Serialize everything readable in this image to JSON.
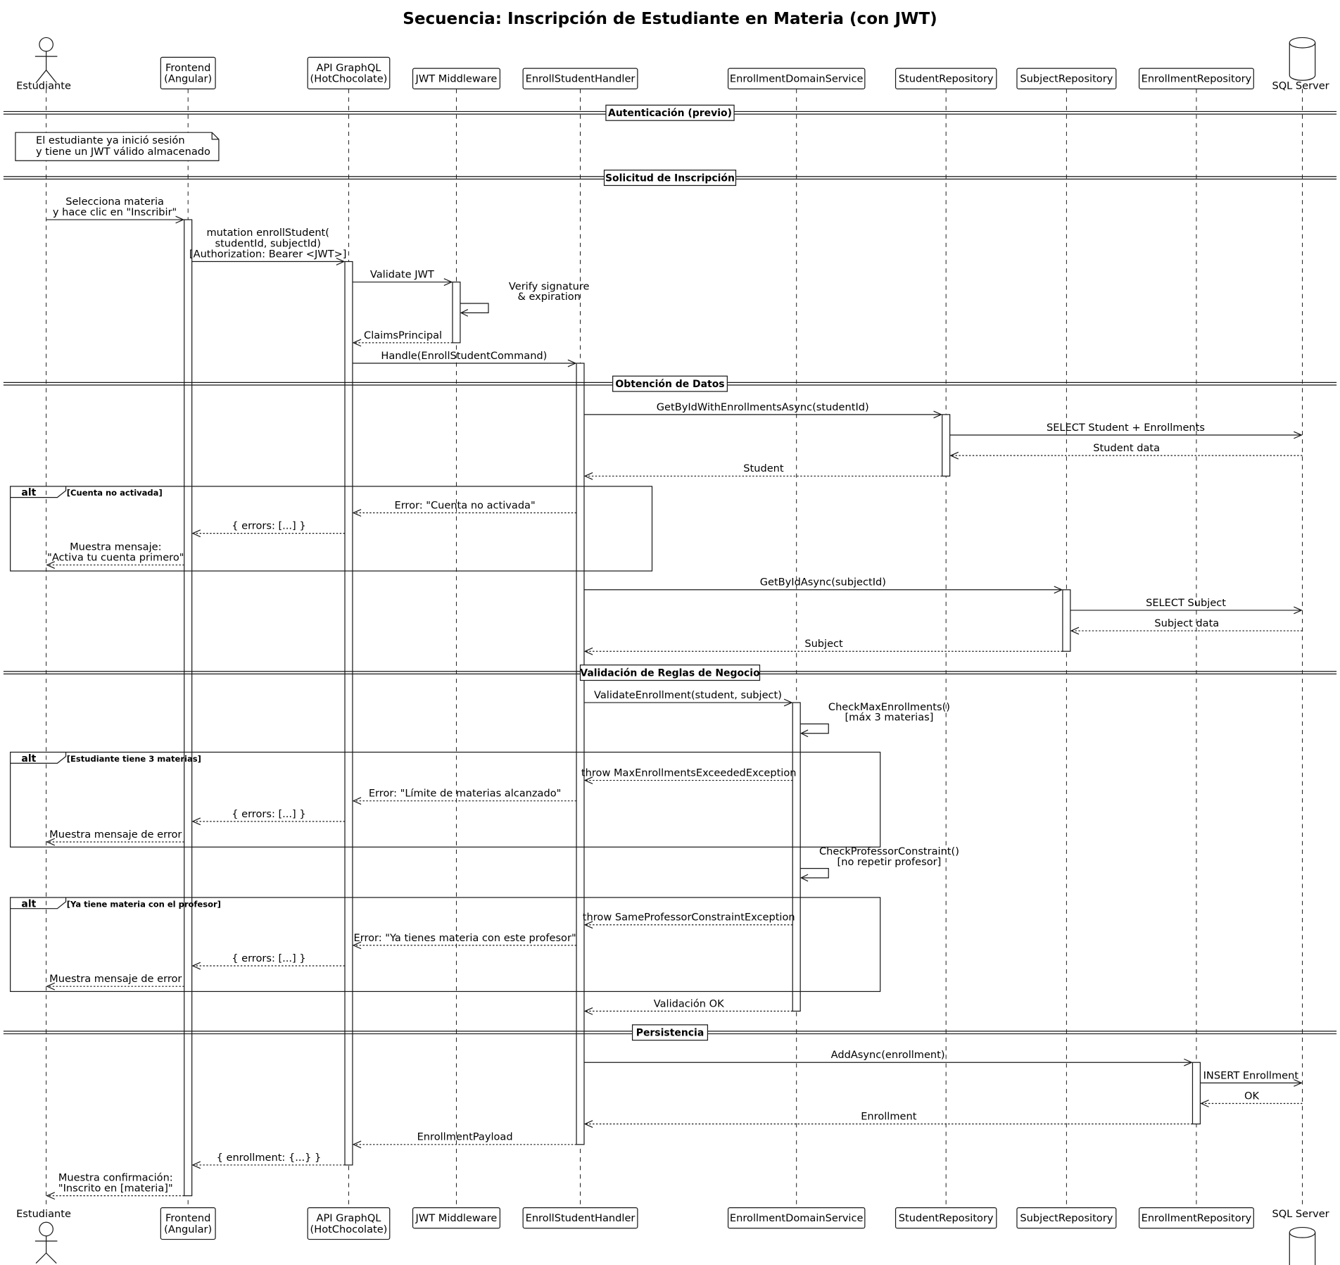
{
  "title": "Secuencia: Inscripción de Estudiante en Materia (con JWT)",
  "participants": [
    {
      "lines": [
        "Estudiante"
      ],
      "kind": "actor"
    },
    {
      "lines": [
        "Frontend",
        "(Angular)"
      ],
      "kind": "participant"
    },
    {
      "lines": [
        "API GraphQL",
        "(HotChocolate)"
      ],
      "kind": "participant"
    },
    {
      "lines": [
        "JWT Middleware"
      ],
      "kind": "participant"
    },
    {
      "lines": [
        "EnrollStudentHandler"
      ],
      "kind": "participant"
    },
    {
      "lines": [
        "EnrollmentDomainService"
      ],
      "kind": "participant"
    },
    {
      "lines": [
        "StudentRepository"
      ],
      "kind": "participant"
    },
    {
      "lines": [
        "SubjectRepository"
      ],
      "kind": "participant"
    },
    {
      "lines": [
        "EnrollmentRepository"
      ],
      "kind": "participant"
    },
    {
      "lines": [
        "SQL Server"
      ],
      "kind": "database"
    }
  ],
  "dividers": [
    "Autenticación (previo)",
    "Solicitud de Inscripción",
    "Obtención de Datos",
    "Validación de Reglas de Negocio",
    "Persistencia"
  ],
  "note": [
    "El estudiante ya inició sesión",
    "y tiene un JWT válido almacenado"
  ],
  "alts": [
    {
      "keyword": "alt",
      "guard": "[Cuenta no activada]"
    },
    {
      "keyword": "alt",
      "guard": "[Estudiante tiene 3 materias]"
    },
    {
      "keyword": "alt",
      "guard": "[Ya tiene materia con el profesor]"
    }
  ],
  "messages": [
    {
      "from": 0,
      "to": 1,
      "dashed": false,
      "lines": [
        "Selecciona materia",
        "y hace clic en \"Inscribir\""
      ]
    },
    {
      "from": 1,
      "to": 2,
      "dashed": false,
      "lines": [
        "mutation enrollStudent(",
        "studentId, subjectId)",
        "[Authorization: Bearer <JWT>]"
      ]
    },
    {
      "from": 2,
      "to": 3,
      "dashed": false,
      "lines": [
        "Validate JWT"
      ]
    },
    {
      "from": 3,
      "to": 3,
      "dashed": false,
      "lines": [
        "Verify signature",
        "& expiration"
      ]
    },
    {
      "from": 3,
      "to": 2,
      "dashed": true,
      "lines": [
        "ClaimsPrincipal"
      ]
    },
    {
      "from": 2,
      "to": 4,
      "dashed": false,
      "lines": [
        "Handle(EnrollStudentCommand)"
      ]
    },
    {
      "from": 4,
      "to": 6,
      "dashed": false,
      "lines": [
        "GetByIdWithEnrollmentsAsync(studentId)"
      ]
    },
    {
      "from": 6,
      "to": 9,
      "dashed": false,
      "lines": [
        "SELECT Student + Enrollments"
      ]
    },
    {
      "from": 9,
      "to": 6,
      "dashed": true,
      "lines": [
        "Student data"
      ]
    },
    {
      "from": 6,
      "to": 4,
      "dashed": true,
      "lines": [
        "Student"
      ]
    },
    {
      "from": 4,
      "to": 2,
      "dashed": true,
      "lines": [
        "Error: \"Cuenta no activada\""
      ]
    },
    {
      "from": 2,
      "to": 1,
      "dashed": true,
      "lines": [
        "{ errors: [...] }"
      ]
    },
    {
      "from": 1,
      "to": 0,
      "dashed": true,
      "lines": [
        "Muestra mensaje:",
        "\"Activa tu cuenta primero\""
      ]
    },
    {
      "from": 4,
      "to": 7,
      "dashed": false,
      "lines": [
        "GetByIdAsync(subjectId)"
      ]
    },
    {
      "from": 7,
      "to": 9,
      "dashed": false,
      "lines": [
        "SELECT Subject"
      ]
    },
    {
      "from": 9,
      "to": 7,
      "dashed": true,
      "lines": [
        "Subject data"
      ]
    },
    {
      "from": 7,
      "to": 4,
      "dashed": true,
      "lines": [
        "Subject"
      ]
    },
    {
      "from": 4,
      "to": 5,
      "dashed": false,
      "lines": [
        "ValidateEnrollment(student, subject)"
      ]
    },
    {
      "from": 5,
      "to": 5,
      "dashed": false,
      "lines": [
        "CheckMaxEnrollments()",
        "[máx 3 materias]"
      ]
    },
    {
      "from": 5,
      "to": 4,
      "dashed": true,
      "lines": [
        "throw MaxEnrollmentsExceededException"
      ]
    },
    {
      "from": 4,
      "to": 2,
      "dashed": true,
      "lines": [
        "Error: \"Límite de materias alcanzado\""
      ]
    },
    {
      "from": 2,
      "to": 1,
      "dashed": true,
      "lines": [
        "{ errors: [...] }"
      ]
    },
    {
      "from": 1,
      "to": 0,
      "dashed": true,
      "lines": [
        "Muestra mensaje de error"
      ]
    },
    {
      "from": 5,
      "to": 5,
      "dashed": false,
      "lines": [
        "CheckProfessorConstraint()",
        "[no repetir profesor]"
      ]
    },
    {
      "from": 5,
      "to": 4,
      "dashed": true,
      "lines": [
        "throw SameProfessorConstraintException"
      ]
    },
    {
      "from": 4,
      "to": 2,
      "dashed": true,
      "lines": [
        "Error: \"Ya tienes materia con este profesor\""
      ]
    },
    {
      "from": 2,
      "to": 1,
      "dashed": true,
      "lines": [
        "{ errors: [...] }"
      ]
    },
    {
      "from": 1,
      "to": 0,
      "dashed": true,
      "lines": [
        "Muestra mensaje de error"
      ]
    },
    {
      "from": 5,
      "to": 4,
      "dashed": true,
      "lines": [
        "Validación OK"
      ]
    },
    {
      "from": 4,
      "to": 8,
      "dashed": false,
      "lines": [
        "AddAsync(enrollment)"
      ]
    },
    {
      "from": 8,
      "to": 9,
      "dashed": false,
      "lines": [
        "INSERT Enrollment"
      ]
    },
    {
      "from": 9,
      "to": 8,
      "dashed": true,
      "lines": [
        "OK"
      ]
    },
    {
      "from": 8,
      "to": 4,
      "dashed": true,
      "lines": [
        "Enrollment"
      ]
    },
    {
      "from": 4,
      "to": 2,
      "dashed": true,
      "lines": [
        "EnrollmentPayload"
      ]
    },
    {
      "from": 2,
      "to": 1,
      "dashed": true,
      "lines": [
        "{ enrollment: {...} }"
      ]
    },
    {
      "from": 1,
      "to": 0,
      "dashed": true,
      "lines": [
        "Muestra confirmación:",
        "\"Inscrito en [materia]\""
      ]
    }
  ]
}
